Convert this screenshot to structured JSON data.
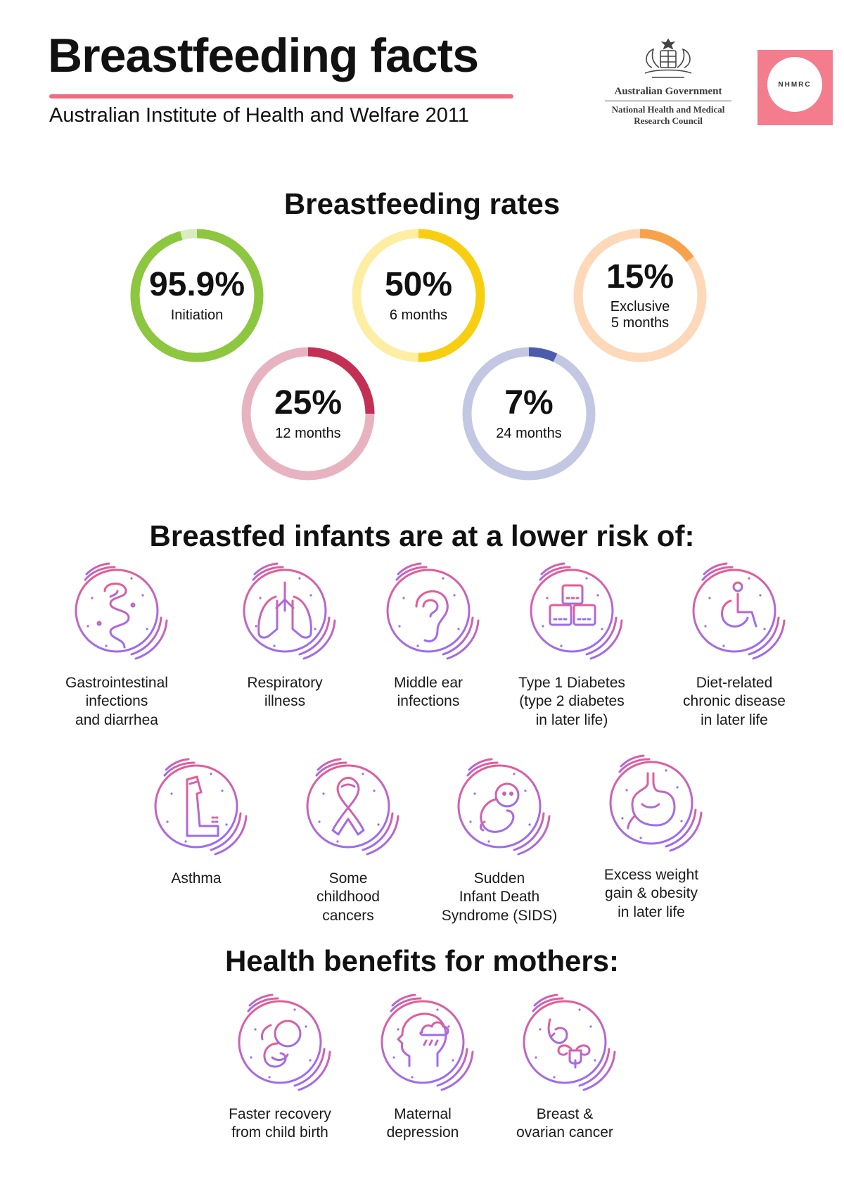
{
  "header": {
    "title": "Breastfeeding facts",
    "subtitle": "Australian Institute of Health and Welfare 2011",
    "government_name": "Australian Government",
    "council_name": "National Health and Medical Research Council",
    "nhmrc_logo": "NHMRC"
  },
  "rates": {
    "title": "Breastfeeding rates",
    "items": [
      {
        "value": "95.9%",
        "label": "Initiation",
        "percent": 95.9,
        "color": "#8dc63f",
        "track": "#d9ecc0"
      },
      {
        "value": "50%",
        "label": "6 months",
        "percent": 50,
        "color": "#f8cf10",
        "track": "#fdeea3"
      },
      {
        "value": "15%",
        "label": "Exclusive\n5 months",
        "percent": 15,
        "color": "#f7a24b",
        "track": "#fdd9b9"
      },
      {
        "value": "25%",
        "label": "12 months",
        "percent": 25,
        "color": "#c42f54",
        "track": "#e8b3c0"
      },
      {
        "value": "7%",
        "label": "24 months",
        "percent": 7,
        "color": "#4c5bab",
        "track": "#c4c7e3"
      }
    ]
  },
  "infant_risks": {
    "title": "Breastfed infants are at a lower risk of:",
    "items": [
      {
        "label": "Gastrointestinal\ninfections\nand diarrhea",
        "icon": "intestine-icon"
      },
      {
        "label": "Respiratory\nillness",
        "icon": "lungs-icon"
      },
      {
        "label": "Middle ear\ninfections",
        "icon": "ear-icon"
      },
      {
        "label": "Type 1 Diabetes\n(type 2 diabetes\nin later life)",
        "icon": "sugar-cubes-icon"
      },
      {
        "label": "Diet-related\nchronic disease\nin later life",
        "icon": "wheelchair-icon"
      },
      {
        "label": "Asthma",
        "icon": "inhaler-icon"
      },
      {
        "label": "Some\nchildhood\ncancers",
        "icon": "ribbon-icon"
      },
      {
        "label": "Sudden\nInfant Death\nSyndrome (SIDS)",
        "icon": "sleeping-baby-icon"
      },
      {
        "label": "Excess weight\ngain & obesity\nin later life",
        "icon": "stomach-icon"
      }
    ]
  },
  "mother_benefits": {
    "title": "Health benefits for mothers:",
    "items": [
      {
        "label": "Faster recovery\nfrom child birth",
        "icon": "fetus-icon"
      },
      {
        "label": "Maternal\ndepression",
        "icon": "head-raincloud-icon"
      },
      {
        "label": "Breast &\novarian cancer",
        "icon": "breast-uterus-icon"
      }
    ]
  },
  "icon_gradient": {
    "start": "#f05a86",
    "end": "#9b6df0"
  }
}
